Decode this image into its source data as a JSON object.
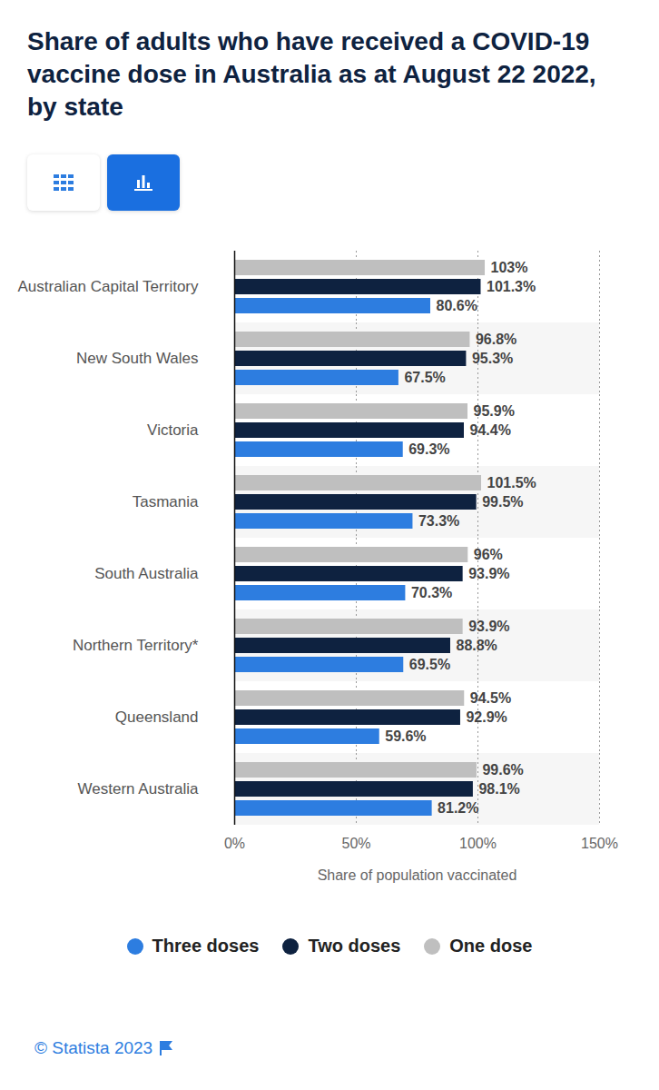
{
  "chart_data": {
    "type": "bar",
    "orientation": "horizontal",
    "title": "Share of adults who have received a COVID-19 vaccine dose in Australia as at August 22 2022, by state",
    "xlabel": "Share of population vaccinated",
    "caption": "© Statista 2023",
    "categories": [
      "Australian Capital Territory",
      "New South Wales",
      "Victoria",
      "Tasmania",
      "South Australia",
      "Northern Territory*",
      "Queensland",
      "Western Australia"
    ],
    "series": [
      {
        "name": "Three doses",
        "color": "#2d7de0",
        "values": [
          80.6,
          67.5,
          69.3,
          73.3,
          70.3,
          69.5,
          59.6,
          81.2
        ],
        "value_labels": [
          "80.6%",
          "67.5%",
          "69.3%",
          "73.3%",
          "70.3%",
          "69.5%",
          "59.6%",
          "81.2%"
        ]
      },
      {
        "name": "Two doses",
        "color": "#0e2240",
        "values": [
          101.3,
          95.3,
          94.4,
          99.5,
          93.9,
          88.8,
          92.9,
          98.1
        ],
        "value_labels": [
          "101.3%",
          "95.3%",
          "94.4%",
          "99.5%",
          "93.9%",
          "88.8%",
          "92.9%",
          "98.1%"
        ]
      },
      {
        "name": "One dose",
        "color": "#bfbfbf",
        "values": [
          103,
          96.8,
          95.9,
          101.5,
          96,
          93.9,
          94.5,
          99.6
        ],
        "value_labels": [
          "103%",
          "96.8%",
          "95.9%",
          "101.5%",
          "96%",
          "93.9%",
          "94.5%",
          "99.6%"
        ]
      }
    ],
    "xlim": [
      0,
      150
    ],
    "xticks": [
      {
        "value": 0,
        "label": "0%"
      },
      {
        "value": 50,
        "label": "50%"
      },
      {
        "value": 100,
        "label": "100%"
      },
      {
        "value": 150,
        "label": "150%"
      }
    ],
    "grid": true,
    "data_labels": true,
    "legend": "bottom"
  }
}
